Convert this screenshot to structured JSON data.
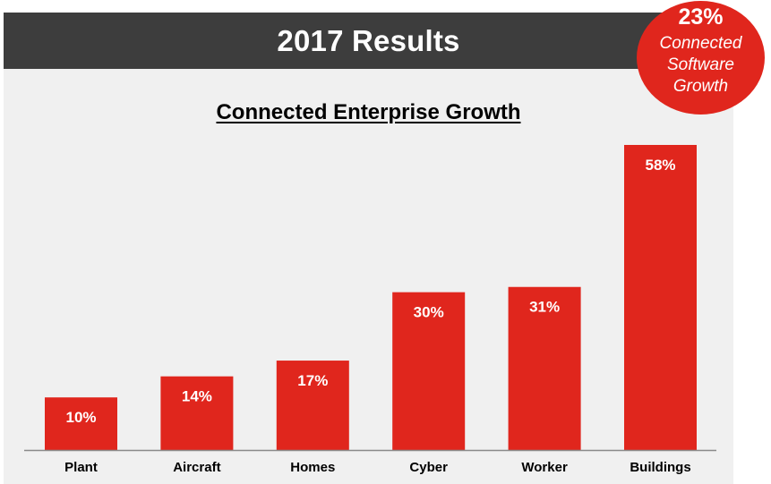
{
  "header": {
    "title": "2017 Results"
  },
  "badge": {
    "value": "23%",
    "label": "Connected Software Growth"
  },
  "colors": {
    "accent": "#e0261d",
    "header_bg": "#3d3d3d",
    "panel_bg": "#f0f0f0"
  },
  "chart_data": {
    "type": "bar",
    "title": "Connected Enterprise Growth",
    "categories": [
      "Plant",
      "Aircraft",
      "Homes",
      "Cyber",
      "Worker",
      "Buildings"
    ],
    "values": [
      10,
      14,
      17,
      30,
      31,
      58
    ],
    "value_labels": [
      "10%",
      "14%",
      "17%",
      "30%",
      "31%",
      "58%"
    ],
    "xlabel": "",
    "ylabel": "",
    "ylim": [
      0,
      58
    ],
    "grid": false,
    "legend": "none"
  }
}
